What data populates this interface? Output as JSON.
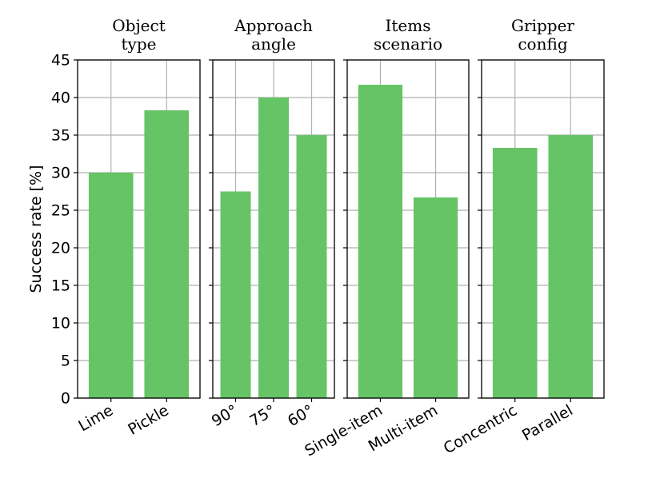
{
  "chart_data": {
    "type": "bar",
    "ylabel": "Success rate [%]",
    "ylim": [
      0,
      45
    ],
    "yticks": [
      0,
      5,
      10,
      15,
      20,
      25,
      30,
      35,
      40,
      45
    ],
    "grid": true,
    "bar_color": "#66c466",
    "panels": [
      {
        "title": [
          "Object",
          "type"
        ],
        "categories": [
          "Lime",
          "Pickle"
        ],
        "values": [
          30.0,
          38.3
        ]
      },
      {
        "title": [
          "Approach",
          "angle"
        ],
        "categories": [
          "90°",
          "75°",
          "60°"
        ],
        "values": [
          27.5,
          40.0,
          35.0
        ]
      },
      {
        "title": [
          "Items",
          "scenario"
        ],
        "categories": [
          "Single-item",
          "Multi-item"
        ],
        "values": [
          41.7,
          26.7
        ]
      },
      {
        "title": [
          "Gripper",
          "config"
        ],
        "categories": [
          "Concentric",
          "Parallel"
        ],
        "values": [
          33.3,
          35.0
        ]
      }
    ]
  }
}
